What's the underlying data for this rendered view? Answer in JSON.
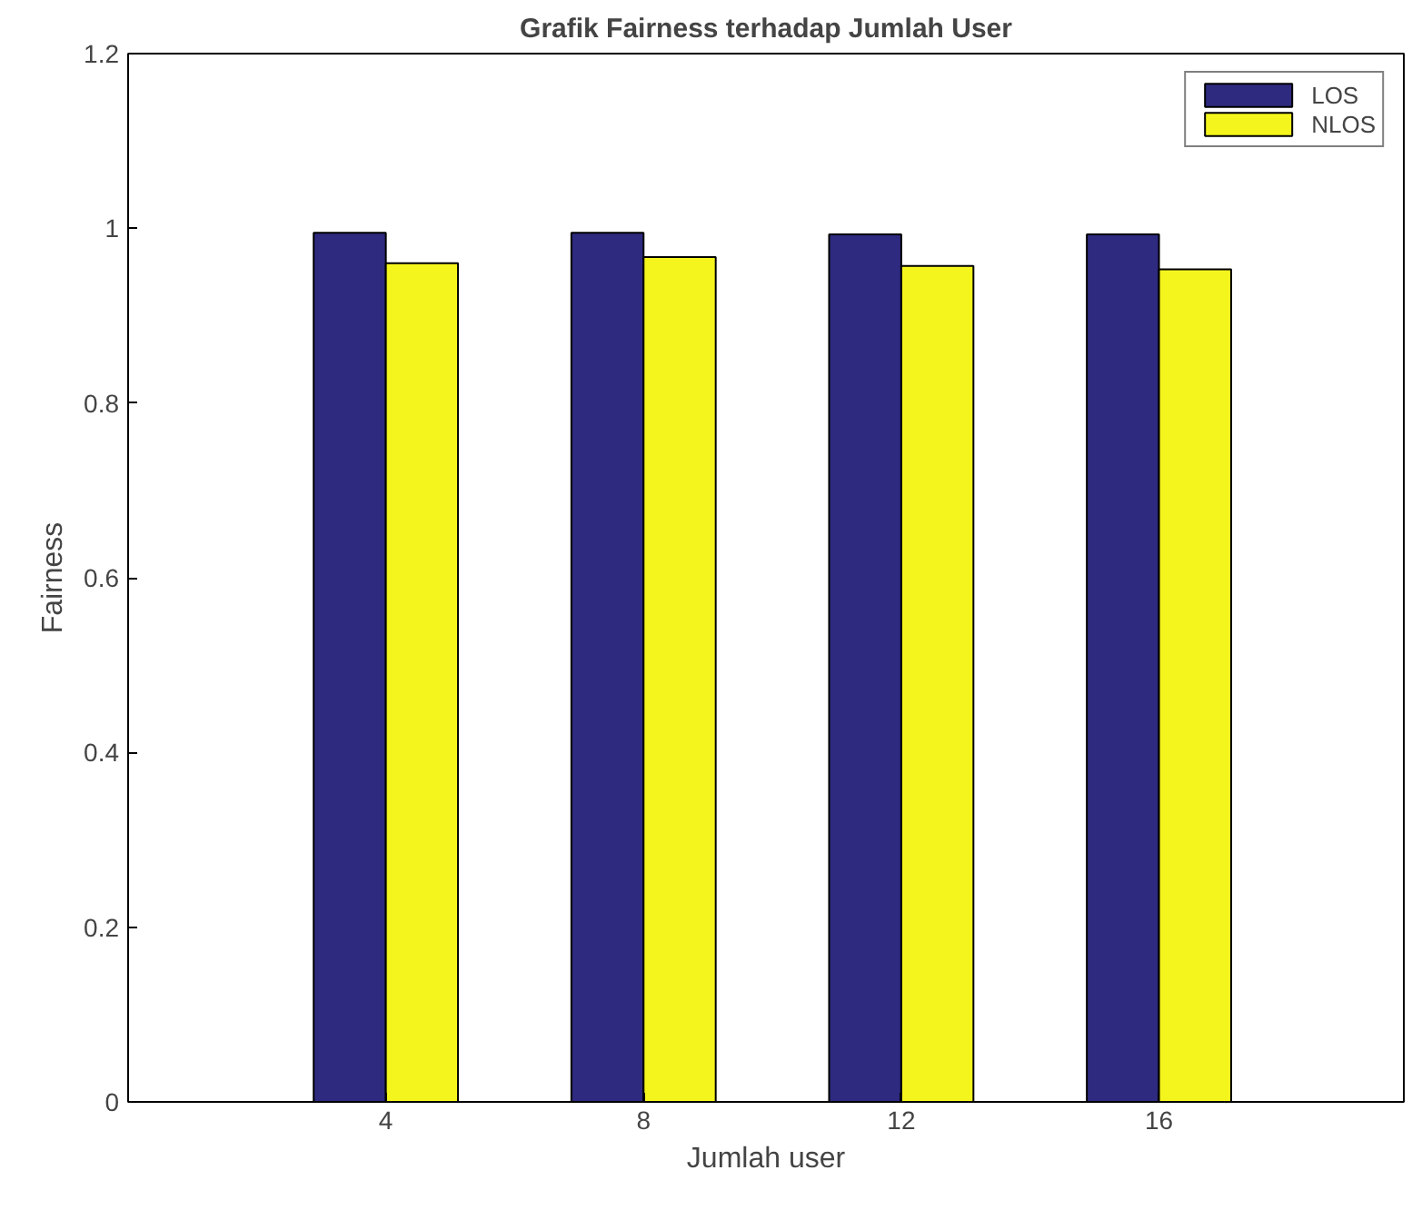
{
  "chart_data": {
    "type": "bar",
    "title": "Grafik Fairness terhadap Jumlah User",
    "xlabel": "Jumlah user",
    "ylabel": "Fairness",
    "categories": [
      "4",
      "8",
      "12",
      "16"
    ],
    "series": [
      {
        "name": "LOS",
        "color": "#2e2a7f",
        "values": [
          0.995,
          0.995,
          0.993,
          0.993
        ]
      },
      {
        "name": "NLOS",
        "color": "#f5f51e",
        "values": [
          0.96,
          0.967,
          0.957,
          0.953
        ]
      }
    ],
    "ylim": [
      0,
      1.2
    ],
    "yticks": [
      0,
      0.2,
      0.4,
      0.6,
      0.8,
      1,
      1.2
    ],
    "grid": false,
    "legend": "top right"
  }
}
